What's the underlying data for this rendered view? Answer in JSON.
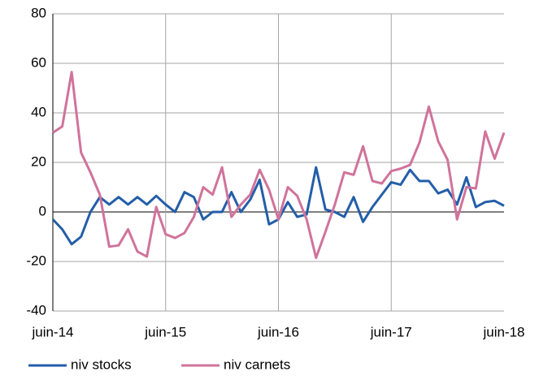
{
  "chart_data": {
    "type": "line",
    "categories": [
      "juin-14",
      null,
      null,
      null,
      null,
      null,
      null,
      null,
      null,
      null,
      null,
      null,
      "juin-15",
      null,
      null,
      null,
      null,
      null,
      null,
      null,
      null,
      null,
      null,
      null,
      "juin-16",
      null,
      null,
      null,
      null,
      null,
      null,
      null,
      null,
      null,
      null,
      null,
      "juin-17",
      null,
      null,
      null,
      null,
      null,
      null,
      null,
      null,
      null,
      null,
      null,
      "juin-18"
    ],
    "series": [
      {
        "name": "niv stocks",
        "color": "#235ea8",
        "values": [
          -3,
          -7,
          -13,
          -10,
          0,
          6,
          3,
          6,
          3,
          6,
          3,
          6.5,
          3,
          0,
          8,
          6,
          -3,
          0,
          0,
          8,
          0,
          5,
          13,
          -5,
          -3,
          4,
          -2,
          -1,
          18,
          1,
          0,
          -2,
          6,
          -4,
          2,
          7,
          12,
          11,
          17,
          12.5,
          12.5,
          7.5,
          9,
          3,
          14,
          2,
          4,
          4.5,
          2.5
        ]
      },
      {
        "name": "niv carnets",
        "color": "#d0739b",
        "values": [
          32,
          34.5,
          56.5,
          24,
          16,
          7,
          -14,
          -13.5,
          -7,
          -16,
          -18,
          2,
          -9,
          -10.5,
          -8.5,
          -2,
          10,
          7,
          18,
          -2,
          3,
          7,
          17,
          9,
          -3,
          10,
          6.5,
          -3,
          -18.5,
          -8,
          3,
          16,
          15,
          26.5,
          12.5,
          11.5,
          16.5,
          17.5,
          19,
          28,
          42.5,
          28.5,
          21,
          -3,
          10,
          9.5,
          32.5,
          21.5,
          32
        ]
      }
    ],
    "ylim": [
      -40,
      80
    ],
    "yticks": [
      -40,
      -20,
      0,
      20,
      40,
      60,
      80
    ],
    "grid": true,
    "legend": "bottom"
  }
}
